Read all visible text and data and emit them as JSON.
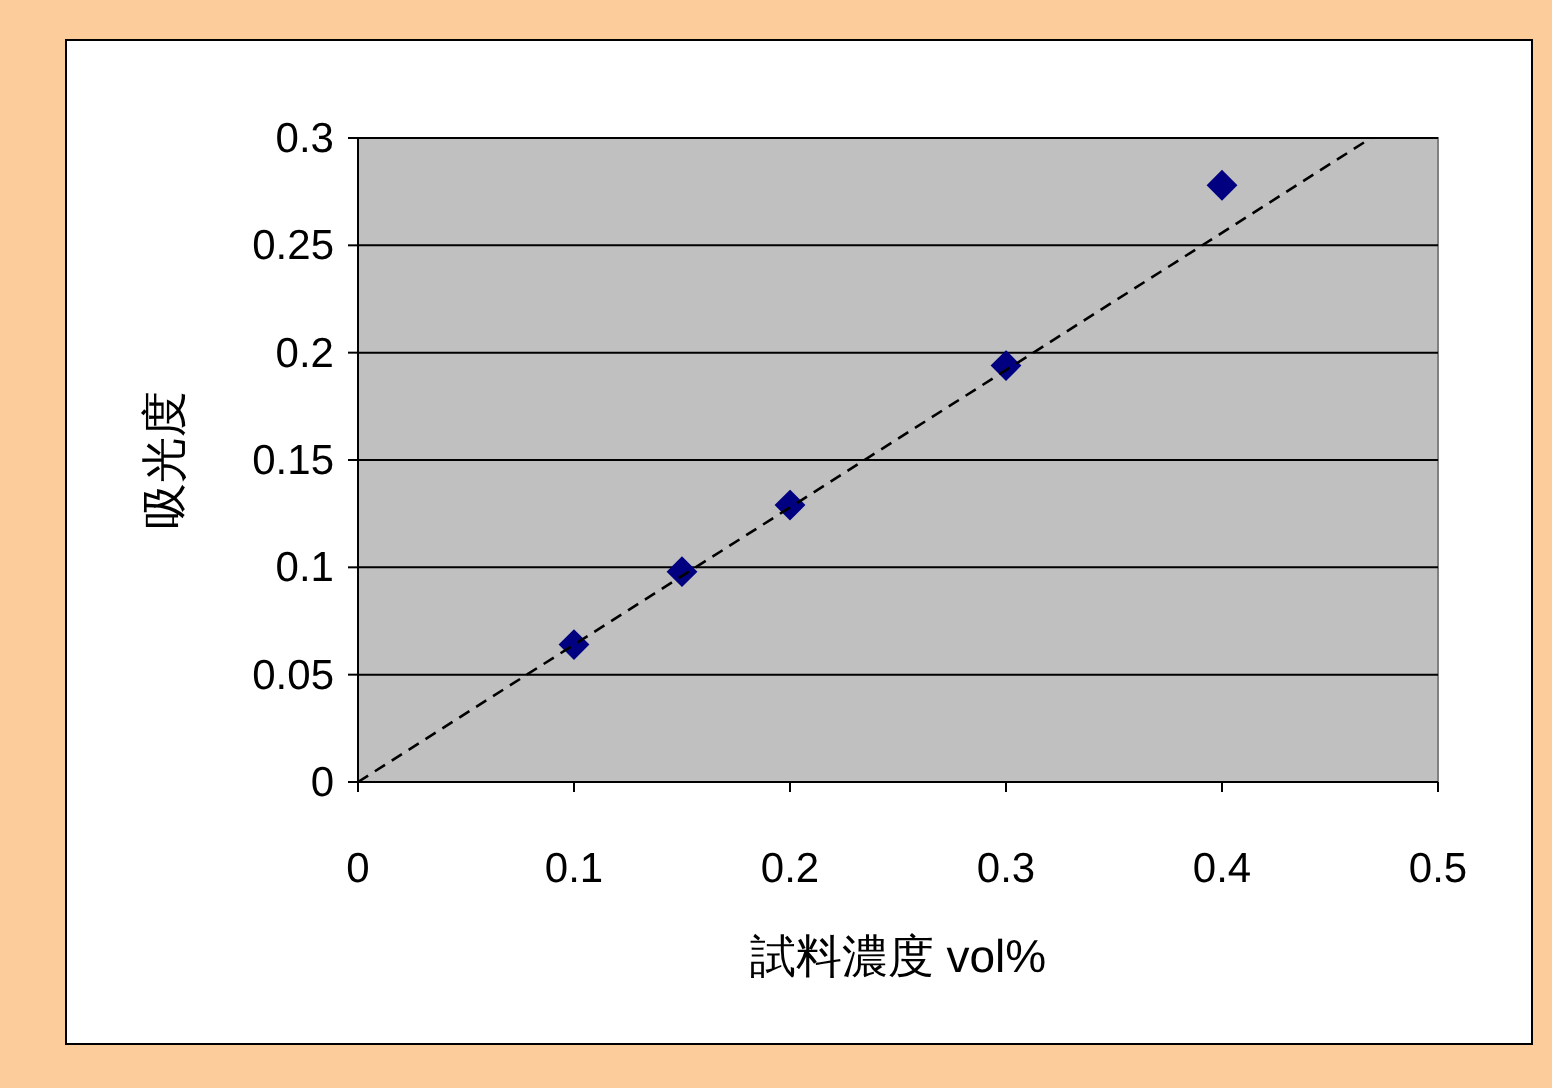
{
  "chart_data": {
    "type": "scatter",
    "xlabel": "試料濃度 vol%",
    "ylabel": "吸光度",
    "xlim": [
      0,
      0.5
    ],
    "xticks": [
      0,
      0.1,
      0.2,
      0.3,
      0.4,
      0.5
    ],
    "ylim": [
      0,
      0.3
    ],
    "yticks": [
      0,
      0.05,
      0.1,
      0.15,
      0.2,
      0.25,
      0.3
    ],
    "grid": "y",
    "marker": "diamond",
    "series": [
      {
        "color": "#000080",
        "x": [
          0.1,
          0.15,
          0.2,
          0.3,
          0.4
        ],
        "values": [
          0.064,
          0.098,
          0.129,
          0.194,
          0.278
        ]
      },
      {
        "type": "line",
        "color": "#000000",
        "line_style": "dashed",
        "marker": "none",
        "x": [
          0,
          0.469
        ],
        "values": [
          0,
          0.3
        ]
      }
    ]
  }
}
